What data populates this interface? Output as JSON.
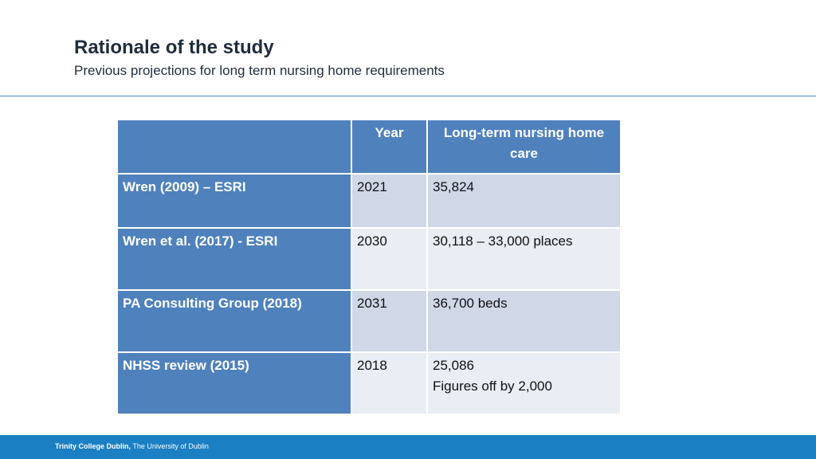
{
  "header": {
    "title": "Rationale of the study",
    "subtitle": "Previous projections for long term nursing home requirements"
  },
  "table": {
    "columns": [
      "",
      "Year",
      "Long-term nursing home care"
    ],
    "rows": [
      {
        "source": "Wren (2009) – ESRI",
        "year": "2021",
        "care": [
          "35,824"
        ]
      },
      {
        "source": "Wren et al. (2017) - ESRI",
        "year": "2030",
        "care": [
          "30,118 – 33,000 places"
        ]
      },
      {
        "source": "PA Consulting Group (2018)",
        "year": "2031",
        "care": [
          "36,700 beds"
        ]
      },
      {
        "source": "NHSS review (2015)",
        "year": "2018",
        "care": [
          "25,086",
          "Figures off by 2,000"
        ]
      }
    ]
  },
  "footer": {
    "institution": "Trinity College Dublin,",
    "subtitle": "The University of Dublin"
  },
  "colors": {
    "header_blue": "#4f81bd",
    "row_light_1": "#d0d8e8",
    "row_light_2": "#e9edf4",
    "footer_blue": "#1b7fc3"
  }
}
